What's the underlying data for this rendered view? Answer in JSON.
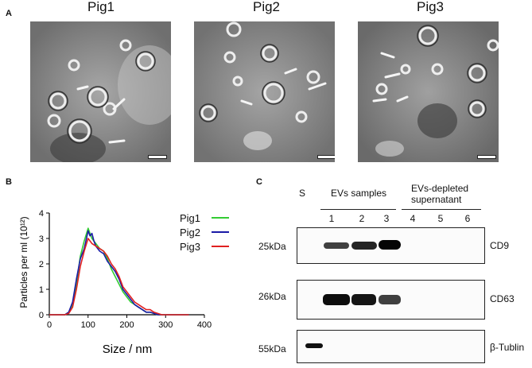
{
  "panels": {
    "a": "A",
    "b": "B",
    "c": "C"
  },
  "em": {
    "titles": [
      "Pig1",
      "Pig2",
      "Pig3"
    ]
  },
  "chart_data": {
    "type": "line",
    "xlabel": "Size / nm",
    "ylabel": "Particles per ml (10¹²)",
    "xlim": [
      0,
      400
    ],
    "ylim": [
      0,
      4
    ],
    "xticks": [
      0,
      100,
      200,
      300,
      400
    ],
    "yticks": [
      0,
      1,
      2,
      3,
      4
    ],
    "legend_position": "top-right",
    "series": [
      {
        "name": "Pig1",
        "color": "#33cc33",
        "x": [
          0,
          20,
          40,
          50,
          60,
          70,
          80,
          90,
          100,
          105,
          110,
          120,
          130,
          140,
          150,
          160,
          170,
          180,
          190,
          200,
          210,
          220,
          230,
          240,
          250,
          260,
          270,
          280,
          290,
          300,
          320,
          360
        ],
        "y": [
          0,
          0,
          0,
          0.1,
          0.4,
          1.2,
          2.3,
          2.9,
          3.4,
          3.2,
          3.0,
          2.8,
          2.6,
          2.5,
          2.2,
          1.8,
          1.5,
          1.2,
          0.9,
          0.7,
          0.5,
          0.4,
          0.3,
          0.2,
          0.1,
          0.1,
          0.05,
          0,
          0,
          0,
          0,
          0
        ]
      },
      {
        "name": "Pig2",
        "color": "#1a1aa6",
        "x": [
          0,
          20,
          40,
          50,
          60,
          70,
          80,
          90,
          100,
          105,
          110,
          115,
          120,
          130,
          140,
          150,
          160,
          170,
          180,
          190,
          200,
          210,
          220,
          230,
          240,
          250,
          260,
          270,
          280,
          290,
          300,
          360
        ],
        "y": [
          0,
          0,
          0,
          0.1,
          0.5,
          1.4,
          2.2,
          2.6,
          3.3,
          3.1,
          3.2,
          2.9,
          2.7,
          2.5,
          2.4,
          2.1,
          1.9,
          1.7,
          1.4,
          1.0,
          0.8,
          0.6,
          0.4,
          0.3,
          0.2,
          0.1,
          0.1,
          0.05,
          0,
          0,
          0,
          0
        ]
      },
      {
        "name": "Pig3",
        "color": "#e02020",
        "x": [
          0,
          20,
          40,
          50,
          60,
          70,
          80,
          90,
          100,
          110,
          120,
          130,
          140,
          150,
          160,
          170,
          180,
          190,
          200,
          210,
          220,
          230,
          240,
          250,
          260,
          270,
          280,
          290,
          300,
          360
        ],
        "y": [
          0,
          0,
          0,
          0.05,
          0.3,
          1.0,
          1.9,
          2.5,
          3.0,
          2.8,
          2.7,
          2.6,
          2.5,
          2.3,
          2.0,
          1.8,
          1.5,
          1.1,
          0.9,
          0.7,
          0.5,
          0.4,
          0.3,
          0.2,
          0.2,
          0.1,
          0.05,
          0,
          0,
          0
        ]
      }
    ]
  },
  "blot": {
    "s_label": "S",
    "evs_label": "EVs samples",
    "depleted_label_1": "EVs-depleted",
    "depleted_label_2": "supernatant",
    "lanes": [
      "1",
      "2",
      "3",
      "4",
      "5",
      "6"
    ],
    "rows": [
      {
        "ladder": "25kDa",
        "marker": "CD9"
      },
      {
        "ladder": "26kDa",
        "marker": "CD63"
      },
      {
        "ladder": "55kDa",
        "marker": "β-Tublin"
      }
    ]
  }
}
